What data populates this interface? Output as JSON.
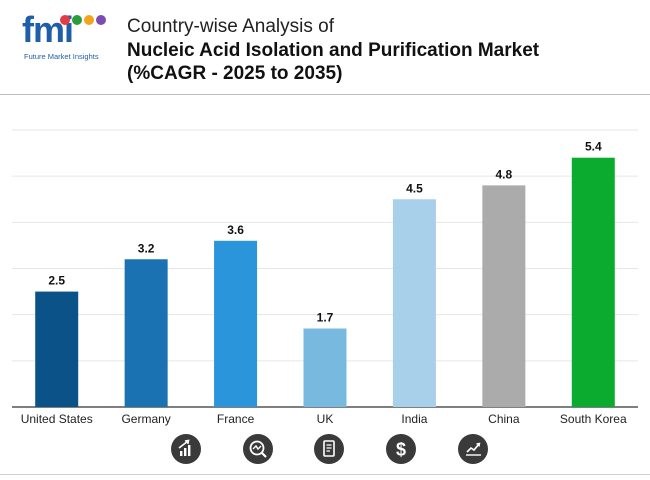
{
  "header": {
    "logo_text": "fmi",
    "logo_subtitle": "Future Market Insights",
    "title_line1": "Country-wise Analysis of",
    "title_line2": "Nucleic Acid Isolation and Purification Market",
    "title_line3": "(%CAGR - 2025 to 2035)"
  },
  "chart_data": {
    "type": "bar",
    "categories": [
      "United States",
      "Germany",
      "France",
      "UK",
      "India",
      "China",
      "South Korea"
    ],
    "values": [
      2.5,
      3.2,
      3.6,
      1.7,
      4.5,
      4.8,
      5.4
    ],
    "colors": [
      "#0b5289",
      "#1a72b2",
      "#2b95dc",
      "#78b9e0",
      "#a8d0ea",
      "#ababab",
      "#0aab2f"
    ],
    "ylim": [
      0,
      6
    ],
    "grid": true,
    "data_labels": true
  },
  "footer_icons": [
    "growth-chart-icon",
    "magnifier-chart-icon",
    "document-icon",
    "dollar-icon",
    "trend-line-icon"
  ]
}
